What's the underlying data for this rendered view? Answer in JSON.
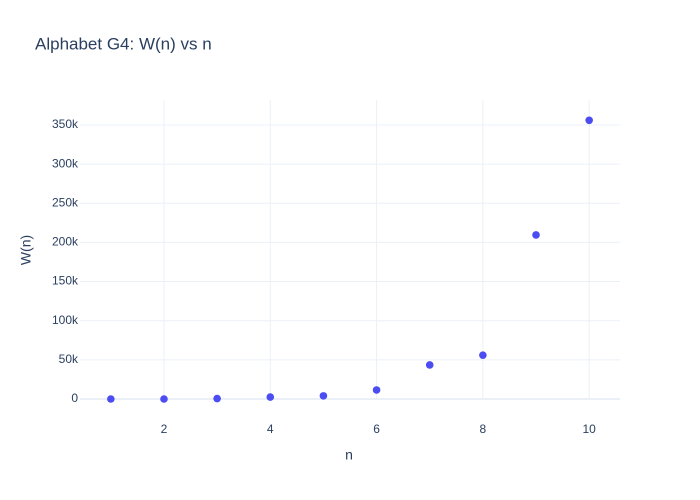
{
  "chart_data": {
    "type": "scatter",
    "title": "Alphabet G4: W(n) vs n",
    "x_label": "n",
    "y_label": "W(n)",
    "x": [
      1,
      2,
      3,
      4,
      5,
      6,
      7,
      8,
      9,
      10
    ],
    "values": [
      0,
      0,
      500,
      2500,
      4000,
      11500,
      43500,
      56000,
      209500,
      356000
    ],
    "color": "#4b4cf2",
    "xlim": [
      0.42,
      10.58
    ],
    "xticks": [
      2,
      4,
      6,
      8,
      10
    ],
    "ylim": [
      -1277,
      381900
    ],
    "yticks": [
      0,
      {
        "value": 50000,
        "label": "50k"
      },
      {
        "value": 100000,
        "label": "100k"
      },
      {
        "value": 150000,
        "label": "150k"
      },
      {
        "value": 200000,
        "label": "200k"
      },
      {
        "value": 250000,
        "label": "250k"
      },
      {
        "value": 300000,
        "label": "300k"
      },
      {
        "value": 350000,
        "label": "350k"
      }
    ],
    "grid": true
  }
}
